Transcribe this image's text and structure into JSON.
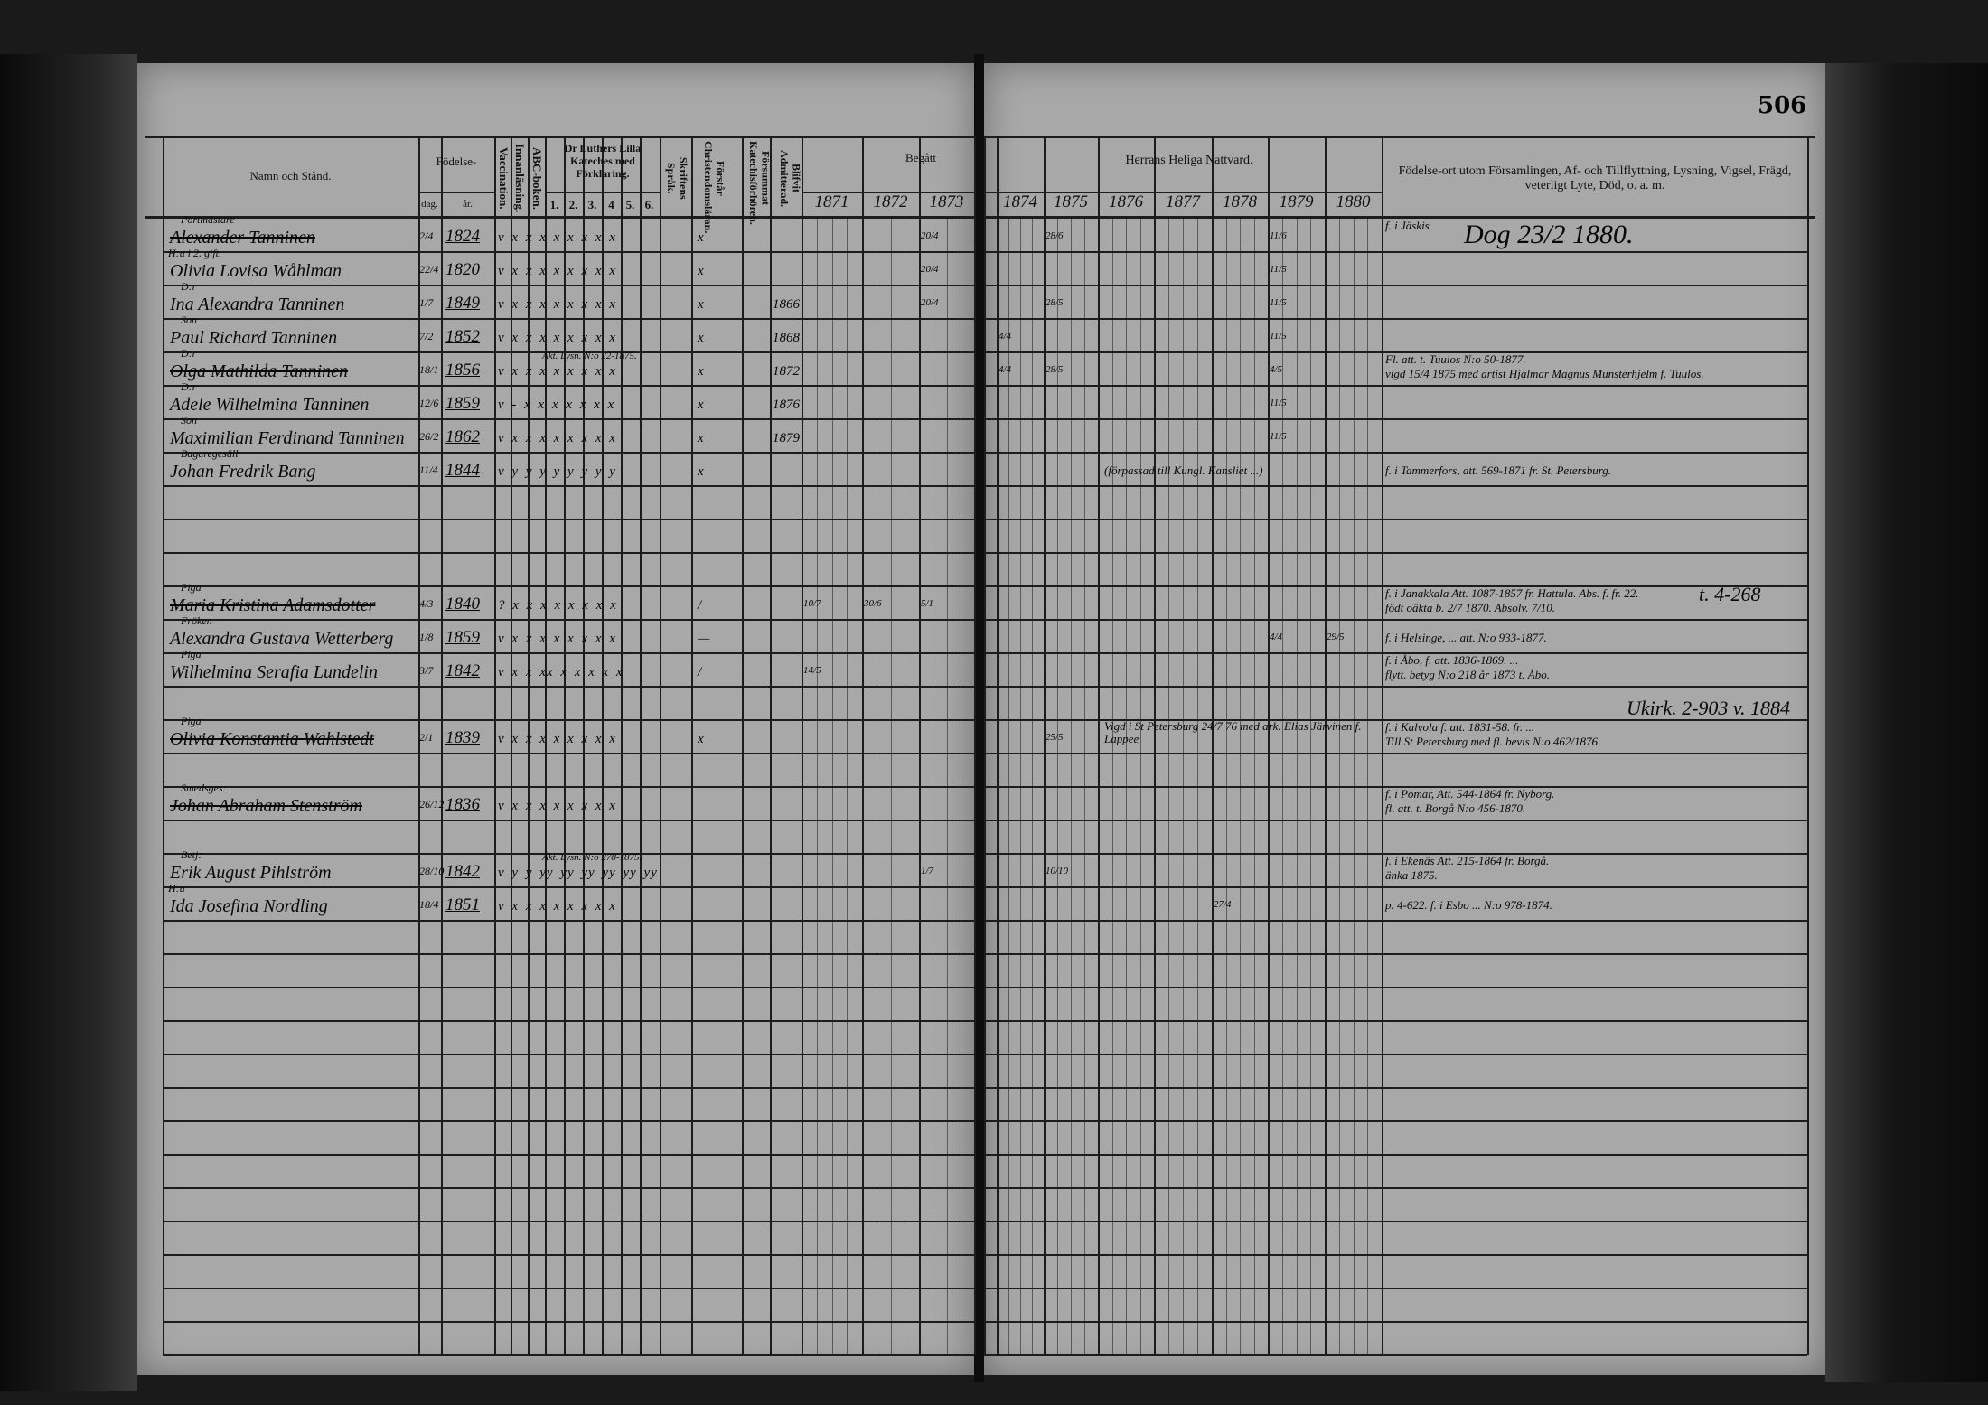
{
  "page_number": "506",
  "headers": {
    "name": "Namn och Stånd.",
    "birth": "Födelse-",
    "day": "dag.",
    "year": "år.",
    "vaccination": "Vaccination.",
    "reading": "Innanläsning.",
    "abc": "ABC-boken.",
    "catechism": "Dr Luthers Lilla Kateches med Förklaring.",
    "catechism_parts": [
      "1.",
      "2.",
      "3.",
      "4",
      "5.",
      "6."
    ],
    "scripture": "Skriftens Språk.",
    "understands": "Förstår Christendomsläran.",
    "missed": "Försummat Katechisförhören.",
    "admitted": "Blifvit Admitterad.",
    "taken": "Begått",
    "communion": "Herrans Heliga Nattvard.",
    "years_left": [
      "1871",
      "1872",
      "1873"
    ],
    "years_right": [
      "1874",
      "1875",
      "1876",
      "1877",
      "1878",
      "1879",
      "1880"
    ],
    "remarks": "Födelse-ort utom Församlingen, Af- och Tillflyttning, Lysning, Vigsel, Frägd, veterligt Lyte, Död, o. a. m."
  },
  "entries": [
    {
      "title": "Portmästare",
      "name": "Alexander Tanninen",
      "day": "2/4",
      "year": "1824",
      "marks": "v x x x x x x x x",
      "understands": "x",
      "struck": true,
      "communion": {
        "1873": "20/4",
        "1875": "28/6",
        "1879": "11/6"
      },
      "remark": [
        "f. i Jäskis",
        "Dog 23/2 1880."
      ]
    },
    {
      "title": "H:u i 2. gift.",
      "name": "Olivia Lovisa Wåhlman",
      "day": "22/4",
      "year": "1820",
      "marks": "v x x x x x x x x",
      "understands": "x",
      "communion": {
        "1873": "20/4",
        "1879": "11/5"
      }
    },
    {
      "title": "D:r",
      "name": "Ina Alexandra Tanninen",
      "day": "1/7",
      "year": "1849",
      "marks": "v x x x x x x x x",
      "understands": "x",
      "admitted": "1866",
      "communion": {
        "1873": "20/4",
        "1875": "28/5",
        "1879": "11/5"
      }
    },
    {
      "title": "Son",
      "name": "Paul Richard Tanninen",
      "day": "7/2",
      "year": "1852",
      "marks": "v x x x x x x x x",
      "understands": "x",
      "admitted": "1868",
      "communion": {
        "1874": "4/4",
        "1879": "11/5"
      }
    },
    {
      "title": "D:r",
      "name": "Olga Mathilda Tanninen",
      "day": "18/1",
      "year": "1856",
      "marks": "v x x x x x x x x",
      "understands": "x",
      "admitted": "1872",
      "struck": true,
      "note": "Äkt. Lysn. N:o 22-1875.",
      "communion": {
        "1874": "4/4",
        "1875": "28/5",
        "1879": "4/5"
      },
      "remark": [
        "Fl. att. t. Tuulos N:o 50-1877.",
        "vigd 15/4 1875 med artist Hjalmar Magnus Munsterhjelm f. Tuulos."
      ]
    },
    {
      "title": "D:r",
      "name": "Adele Wilhelmina Tanninen",
      "day": "12/6",
      "year": "1859",
      "marks": "v - x x x x x x x",
      "understands": "x",
      "admitted": "1876",
      "communion": {
        "1879": "11/5"
      }
    },
    {
      "title": "Son",
      "name": "Maximilian Ferdinand Tanninen",
      "day": "26/2",
      "year": "1862",
      "marks": "v x x x x x x x x",
      "understands": "x",
      "admitted": "1879",
      "communion": {
        "1879": "11/5"
      }
    },
    {
      "title": "Bagaregesäll",
      "name": "Johan Fredrik Bang",
      "day": "11/4",
      "year": "1844",
      "marks": "v y y y y y y y y",
      "understands": "x",
      "right_note": "(förpassad till Kungl. Kansliet ...)",
      "remark": [
        "f. i Tammerfors, att. 569-1871 fr. St. Petersburg."
      ]
    },
    {
      "title": "Piga",
      "name": "Maria Kristina Adamsdotter",
      "day": "4/3",
      "year": "1840",
      "marks": "? x x x x x x x x",
      "understands": "/",
      "struck": true,
      "communion": {
        "1871": "10/7",
        "1872": "30/6",
        "1873": "5/1"
      },
      "remark": [
        "f. i Janakkala Att. 1087-1857 fr. Hattula. Abs. f. fr. 22.",
        "födt oäkta b. 2/7 1870. Absolv. 7/10."
      ],
      "remark_side": "t. 4-268"
    },
    {
      "title": "Fröken",
      "name": "Alexandra Gustava Wetterberg",
      "day": "1/8",
      "year": "1859",
      "marks": "v x x x x x x x x",
      "understands": "—",
      "communion": {
        "1879": "4/4",
        "1880": "29/5"
      },
      "remark": [
        "f. i Helsinge, ... att. N:o 933-1877."
      ]
    },
    {
      "title": "Piga",
      "name": "Wilhelmina Serafia Lundelin",
      "day": "3/7",
      "year": "1842",
      "marks": "v x x xx x x x x x",
      "understands": "/",
      "communion": {
        "1871": "14/5"
      },
      "remark": [
        "f. i Åbo, f. att. 1836-1869. ...",
        "flytt. betyg N:o 218 år 1873 t. Åbo."
      ]
    },
    {
      "title": "Piga",
      "name": "Olivia Konstantia Wahlstedt",
      "day": "2/1",
      "year": "1839",
      "marks": "v x x x x x x x x",
      "understands": "x",
      "struck": true,
      "communion": {
        "1875": "25/5"
      },
      "right_note": "Vigd i St Petersburg 24/7 76 med ark. Elias Järvinen f. Lappee",
      "remark": [
        "f. i Kalvola f. att. 1831-58. fr. ...",
        "Till St Petersburg med fl. bevis N:o 462/1876"
      ],
      "remark_side": "Ukirk. 2-903 v. 1884"
    },
    {
      "title": "Smedsges:",
      "name": "Johan Abraham Stenström",
      "day": "26/12",
      "year": "1836",
      "marks": "v x x x x x x x x",
      "understands": "",
      "struck": true,
      "remark": [
        "f. i Pomar, Att. 544-1864 fr. Nyborg.",
        "fl. att. t. Borgå N:o 456-1870."
      ]
    },
    {
      "title": "Betj:",
      "name": "Erik August Pihlström",
      "day": "28/10",
      "year": "1842",
      "marks": "v y y yy yy yy yy yy yy",
      "understands": "",
      "note": "Äkt. Lysn. N:o 278-1875.",
      "communion": {
        "1873": "1/7",
        "1875": "10/10"
      },
      "remark": [
        "f. i Ekenäs Att. 215-1864 fr. Borgå.",
        "änka 1875."
      ]
    },
    {
      "title": "H:u",
      "name": "Ida Josefina Nordling",
      "day": "18/4",
      "year": "1851",
      "marks": "v x x x x x x x x",
      "understands": "",
      "communion": {
        "1878": "27/4"
      },
      "remark": [
        "p. 4-622. f. i Esbo ... N:o 978-1874."
      ]
    }
  ]
}
